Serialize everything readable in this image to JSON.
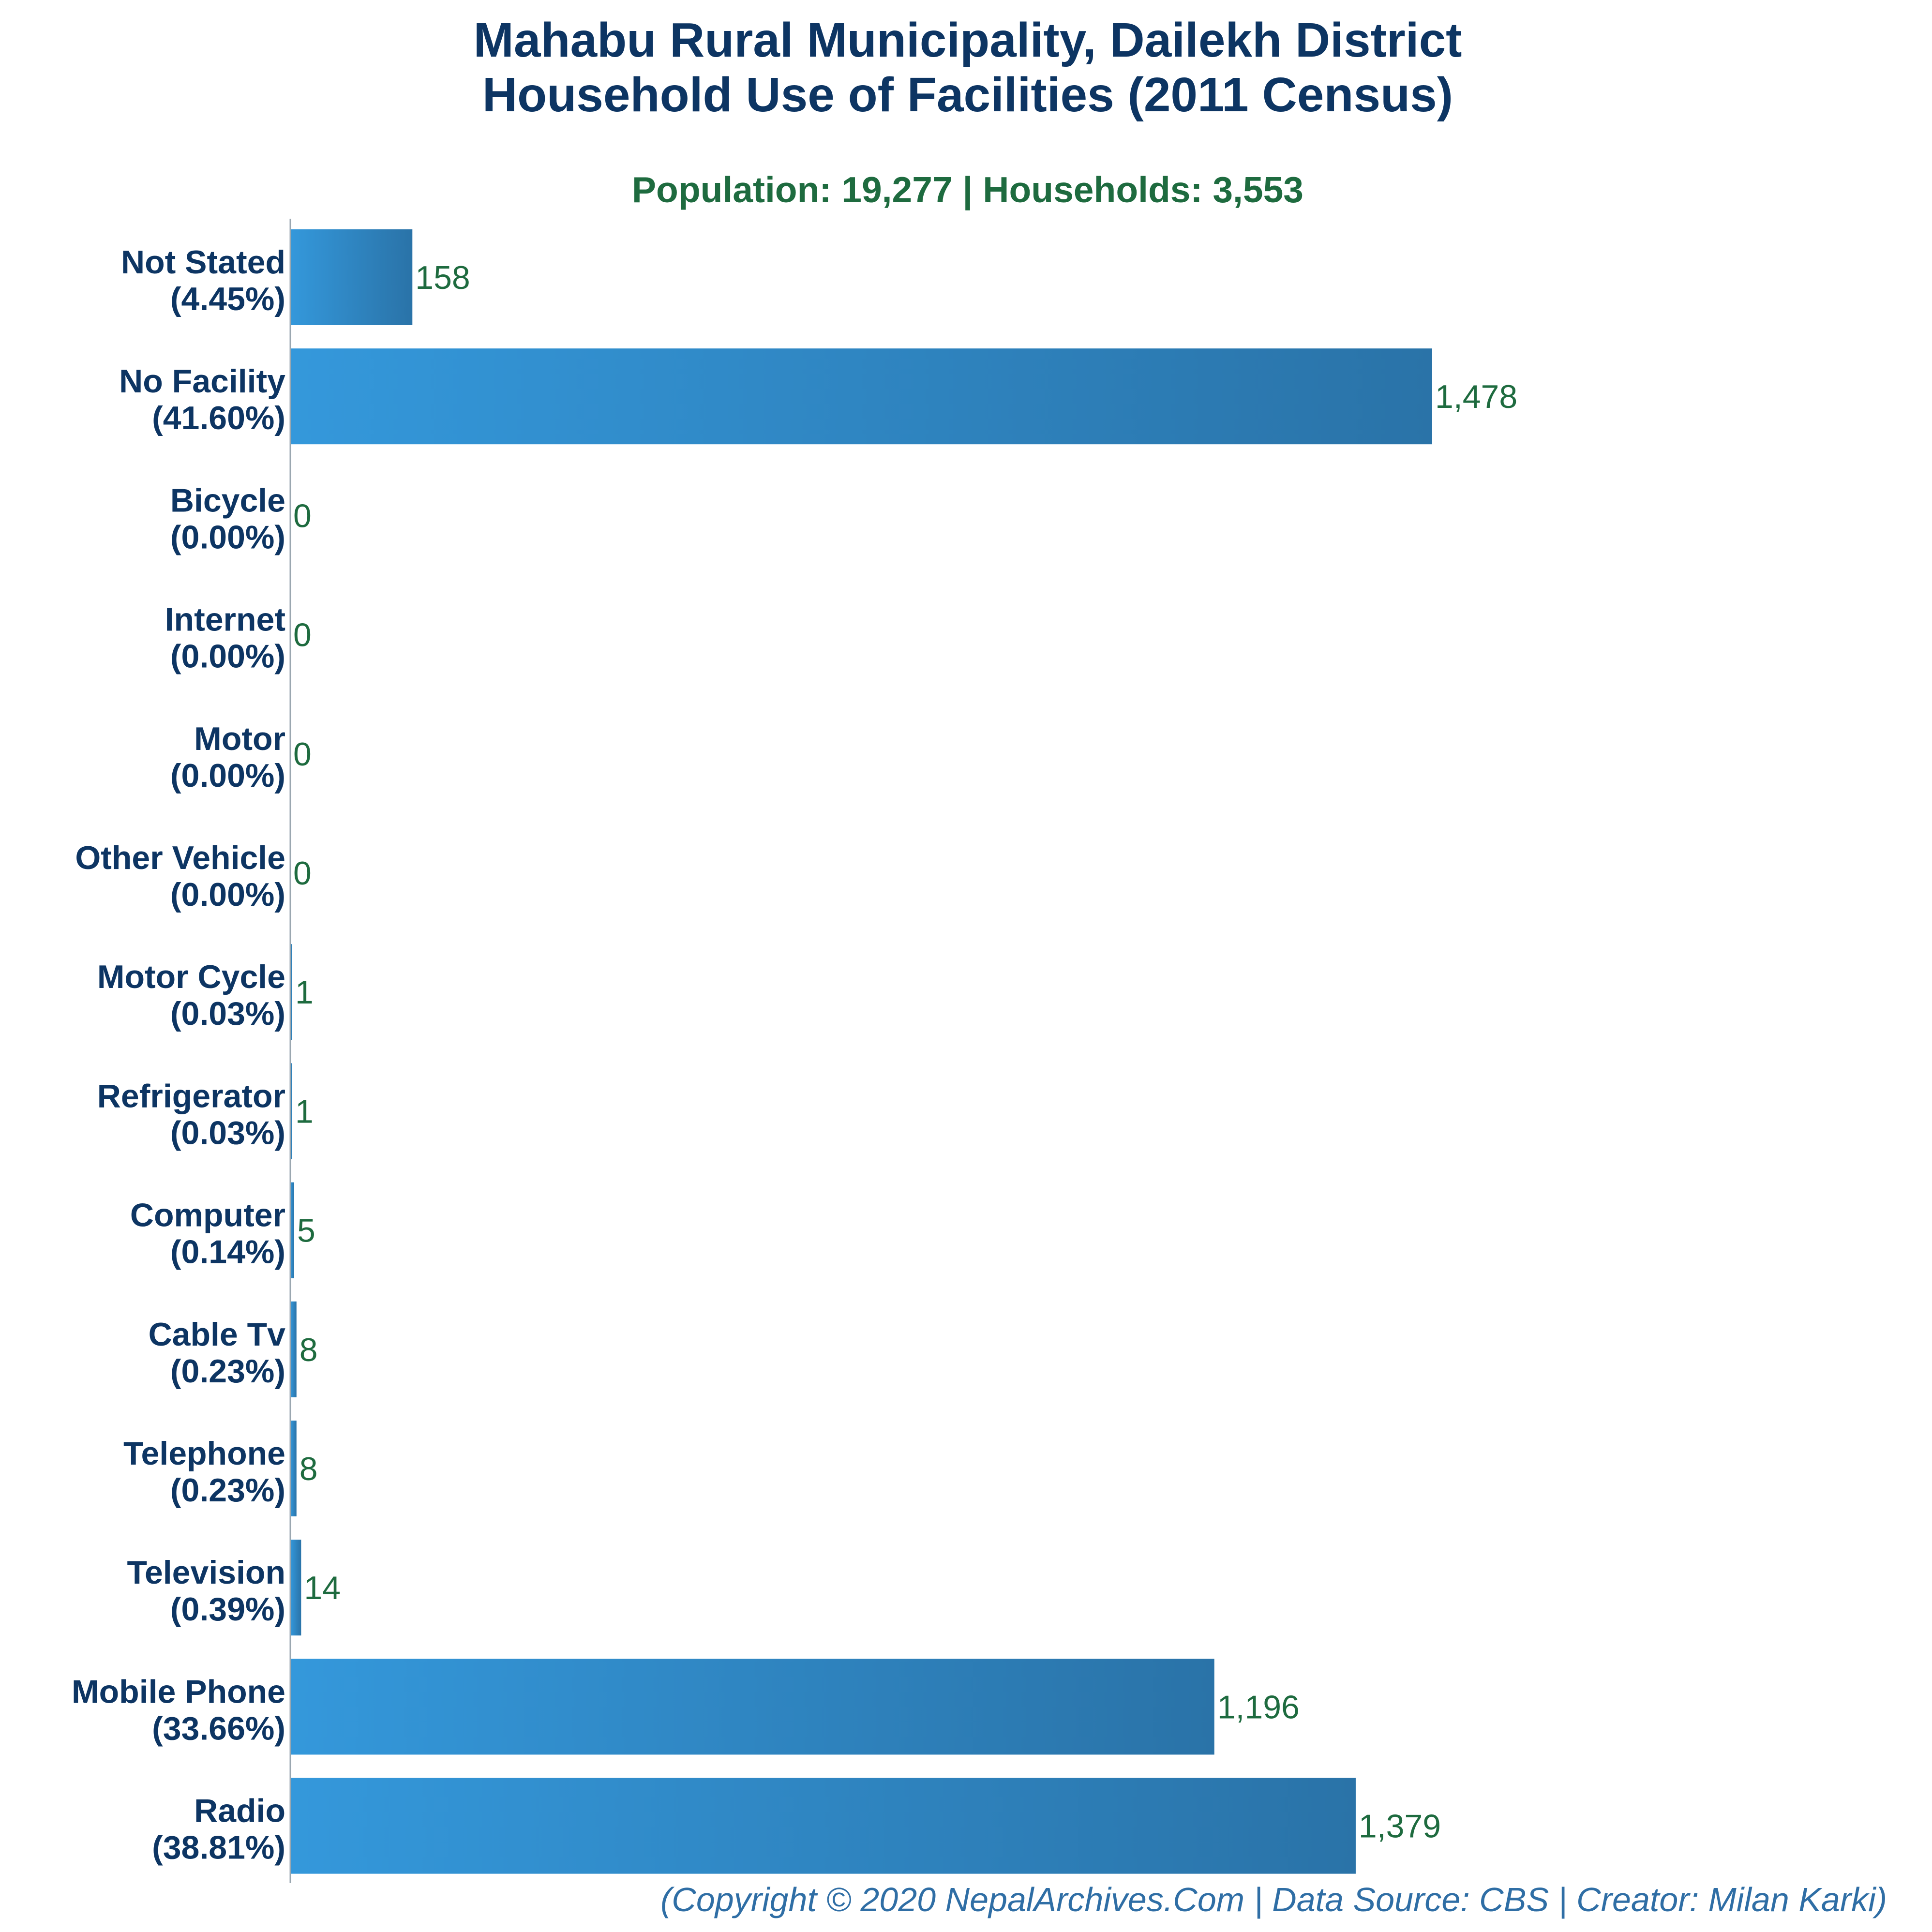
{
  "chart_data": {
    "type": "bar",
    "orientation": "horizontal",
    "title": [
      "Mahabu Rural Municipality, Dailekh District",
      "Household Use of Facilities (2011 Census)"
    ],
    "subtitle": "Population: 19,277 | Households: 3,553",
    "footer": "(Copyright © 2020 NepalArchives.Com | Data Source: CBS | Creator: Milan Karki)",
    "categories": [
      "Not Stated",
      "No Facility",
      "Bicycle",
      "Internet",
      "Motor",
      "Other Vehicle",
      "Motor Cycle",
      "Refrigerator",
      "Computer",
      "Cable Tv",
      "Telephone",
      "Television",
      "Mobile Phone",
      "Radio"
    ],
    "percent_labels": [
      "(4.45%)",
      "(41.60%)",
      "(0.00%)",
      "(0.00%)",
      "(0.00%)",
      "(0.00%)",
      "(0.03%)",
      "(0.03%)",
      "(0.14%)",
      "(0.23%)",
      "(0.23%)",
      "(0.39%)",
      "(33.66%)",
      "(38.81%)"
    ],
    "values": [
      158,
      1478,
      0,
      0,
      0,
      0,
      1,
      1,
      5,
      8,
      8,
      14,
      1196,
      1379
    ],
    "value_labels": [
      "158",
      "1,478",
      "0",
      "0",
      "0",
      "0",
      "1",
      "1",
      "5",
      "8",
      "8",
      "14",
      "1,196",
      "1,379"
    ],
    "xlim": [
      0,
      1478
    ],
    "grid": false,
    "legend": "none",
    "colors": {
      "title": "#0d3563",
      "subtitle": "#1e6b3f",
      "category_label": "#0d3563",
      "value_label": "#1e6b3f",
      "footer": "#2f6ea5",
      "bar_start": "#3498db",
      "bar_end": "#2a73a8",
      "axis": "#9aa7b0"
    }
  }
}
